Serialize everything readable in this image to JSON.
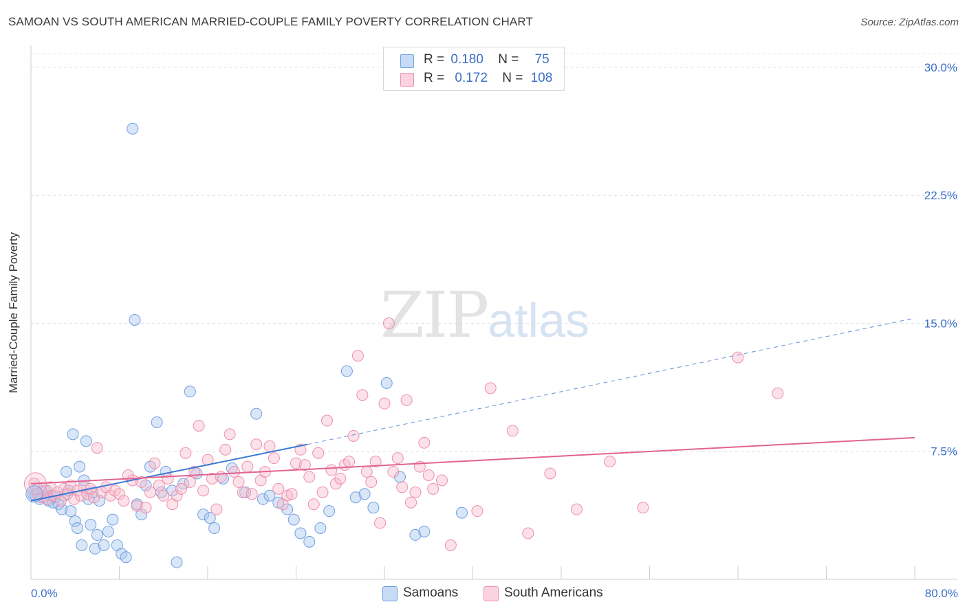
{
  "title": "SAMOAN VS SOUTH AMERICAN MARRIED-COUPLE FAMILY POVERTY CORRELATION CHART",
  "source": "Source: ZipAtlas.com",
  "watermark": {
    "zip": "ZIP",
    "atlas": "atlas"
  },
  "legend": {
    "samoans": {
      "r_label": "R =",
      "r_value": "0.180",
      "n_label": "N =",
      "n_value": "75",
      "color": "#aac8f0"
    },
    "south_americans": {
      "r_label": "R =",
      "r_value": "0.172",
      "n_label": "N =",
      "n_value": "108",
      "color": "#f7bccd"
    }
  },
  "bottom_legend": {
    "samoans": "Samoans",
    "south_americans": "South Americans"
  },
  "chart_data": {
    "type": "scatter",
    "title": "SAMOAN VS SOUTH AMERICAN MARRIED-COUPLE FAMILY POVERTY CORRELATION CHART",
    "xlabel": "",
    "ylabel": "Married-Couple Family Poverty",
    "xlim": [
      0,
      80
    ],
    "ylim": [
      0,
      30.8
    ],
    "x_tick_labels": [
      "0.0%",
      "80.0%"
    ],
    "y_tick_labels": [
      "7.5%",
      "15.0%",
      "22.5%",
      "30.0%"
    ],
    "y_ticks": [
      7.5,
      15.0,
      22.5,
      30.0
    ],
    "grid": true,
    "series": [
      {
        "name": "Samoans",
        "color": "#6fa0e0",
        "trend": {
          "x0": 0,
          "y0": 4.6,
          "x1": 25,
          "y1": 7.9,
          "extend_to_x": 80,
          "extend_y": 15.3,
          "color": "#3a78d4"
        },
        "points": [
          [
            0.2,
            5.0
          ],
          [
            0.4,
            4.9
          ],
          [
            0.6,
            5.3
          ],
          [
            0.8,
            4.7
          ],
          [
            1.0,
            5.1
          ],
          [
            1.2,
            4.8
          ],
          [
            1.4,
            5.2
          ],
          [
            1.6,
            4.6
          ],
          [
            1.8,
            4.9
          ],
          [
            2.0,
            4.5
          ],
          [
            2.2,
            4.8
          ],
          [
            2.5,
            4.4
          ],
          [
            2.8,
            4.1
          ],
          [
            3.0,
            4.9
          ],
          [
            3.2,
            6.3
          ],
          [
            3.4,
            5.2
          ],
          [
            3.6,
            4.0
          ],
          [
            3.8,
            8.5
          ],
          [
            4.0,
            3.4
          ],
          [
            4.2,
            3.0
          ],
          [
            4.4,
            6.6
          ],
          [
            4.6,
            2.0
          ],
          [
            4.8,
            5.8
          ],
          [
            5.0,
            8.1
          ],
          [
            5.2,
            4.7
          ],
          [
            5.4,
            3.2
          ],
          [
            5.6,
            5.1
          ],
          [
            5.8,
            1.8
          ],
          [
            6.0,
            2.6
          ],
          [
            6.2,
            4.6
          ],
          [
            6.6,
            2.0
          ],
          [
            7.0,
            2.8
          ],
          [
            7.4,
            3.5
          ],
          [
            7.8,
            2.0
          ],
          [
            8.2,
            1.5
          ],
          [
            8.6,
            1.3
          ],
          [
            9.2,
            26.4
          ],
          [
            9.4,
            15.2
          ],
          [
            9.6,
            4.4
          ],
          [
            10.0,
            3.8
          ],
          [
            10.4,
            5.5
          ],
          [
            10.8,
            6.6
          ],
          [
            11.4,
            9.2
          ],
          [
            11.8,
            5.1
          ],
          [
            12.2,
            6.3
          ],
          [
            12.8,
            5.2
          ],
          [
            13.2,
            1.0
          ],
          [
            13.8,
            5.6
          ],
          [
            14.4,
            11.0
          ],
          [
            15.0,
            6.2
          ],
          [
            15.6,
            3.8
          ],
          [
            16.2,
            3.6
          ],
          [
            16.6,
            3.0
          ],
          [
            17.4,
            5.9
          ],
          [
            18.2,
            6.5
          ],
          [
            19.4,
            5.1
          ],
          [
            20.4,
            9.7
          ],
          [
            21.0,
            4.7
          ],
          [
            21.6,
            4.9
          ],
          [
            22.4,
            4.5
          ],
          [
            23.2,
            4.1
          ],
          [
            23.8,
            3.5
          ],
          [
            24.4,
            2.7
          ],
          [
            25.2,
            2.2
          ],
          [
            26.2,
            3.0
          ],
          [
            27.0,
            4.0
          ],
          [
            28.6,
            12.2
          ],
          [
            29.4,
            4.8
          ],
          [
            30.2,
            5.0
          ],
          [
            31.0,
            4.2
          ],
          [
            32.2,
            11.5
          ],
          [
            33.4,
            6.0
          ],
          [
            34.8,
            2.6
          ],
          [
            35.6,
            2.8
          ],
          [
            39.0,
            3.9
          ]
        ]
      },
      {
        "name": "South Americans",
        "color": "#ef8fae",
        "trend": {
          "x0": 0,
          "y0": 5.6,
          "x1": 80,
          "y1": 8.3,
          "color": "#e2638f"
        },
        "points": [
          [
            0.3,
            5.6
          ],
          [
            0.6,
            5.0
          ],
          [
            0.9,
            4.8
          ],
          [
            1.2,
            5.2
          ],
          [
            1.5,
            4.7
          ],
          [
            1.8,
            5.4
          ],
          [
            2.1,
            4.9
          ],
          [
            2.4,
            5.1
          ],
          [
            2.7,
            4.6
          ],
          [
            3.0,
            5.3
          ],
          [
            3.3,
            5.0
          ],
          [
            3.6,
            5.5
          ],
          [
            3.9,
            4.7
          ],
          [
            4.2,
            5.2
          ],
          [
            4.5,
            4.9
          ],
          [
            4.8,
            5.4
          ],
          [
            5.1,
            5.0
          ],
          [
            5.4,
            5.3
          ],
          [
            5.7,
            4.8
          ],
          [
            6.0,
            7.7
          ],
          [
            6.4,
            5.1
          ],
          [
            6.8,
            5.4
          ],
          [
            7.2,
            4.9
          ],
          [
            7.6,
            5.2
          ],
          [
            8.0,
            5.0
          ],
          [
            8.4,
            4.6
          ],
          [
            8.8,
            6.1
          ],
          [
            9.2,
            5.8
          ],
          [
            9.6,
            4.3
          ],
          [
            10.0,
            5.7
          ],
          [
            10.4,
            4.2
          ],
          [
            10.8,
            5.1
          ],
          [
            11.2,
            6.8
          ],
          [
            11.6,
            5.5
          ],
          [
            12.0,
            4.9
          ],
          [
            12.4,
            5.9
          ],
          [
            12.8,
            4.4
          ],
          [
            13.2,
            4.9
          ],
          [
            13.6,
            5.3
          ],
          [
            14.0,
            7.4
          ],
          [
            14.4,
            5.7
          ],
          [
            14.8,
            6.3
          ],
          [
            15.2,
            9.0
          ],
          [
            15.6,
            5.2
          ],
          [
            16.0,
            7.0
          ],
          [
            16.4,
            5.9
          ],
          [
            16.8,
            4.1
          ],
          [
            17.2,
            6.0
          ],
          [
            17.6,
            7.6
          ],
          [
            18.0,
            8.5
          ],
          [
            18.4,
            6.3
          ],
          [
            18.8,
            5.7
          ],
          [
            19.2,
            5.1
          ],
          [
            19.6,
            6.6
          ],
          [
            20.0,
            5.0
          ],
          [
            20.4,
            7.9
          ],
          [
            20.8,
            5.8
          ],
          [
            21.2,
            6.3
          ],
          [
            21.6,
            7.8
          ],
          [
            22.0,
            7.1
          ],
          [
            22.4,
            5.3
          ],
          [
            22.8,
            4.4
          ],
          [
            23.2,
            4.9
          ],
          [
            23.6,
            5.0
          ],
          [
            24.0,
            6.8
          ],
          [
            24.4,
            7.6
          ],
          [
            24.8,
            6.7
          ],
          [
            25.2,
            6.0
          ],
          [
            25.6,
            4.4
          ],
          [
            26.0,
            7.4
          ],
          [
            26.4,
            5.1
          ],
          [
            26.8,
            9.3
          ],
          [
            27.2,
            6.4
          ],
          [
            27.6,
            5.6
          ],
          [
            28.0,
            5.9
          ],
          [
            28.4,
            6.7
          ],
          [
            28.8,
            6.9
          ],
          [
            29.2,
            8.4
          ],
          [
            29.6,
            13.1
          ],
          [
            30.0,
            10.8
          ],
          [
            30.4,
            6.3
          ],
          [
            30.8,
            5.7
          ],
          [
            31.2,
            6.9
          ],
          [
            31.6,
            3.3
          ],
          [
            32.0,
            10.3
          ],
          [
            32.4,
            15.0
          ],
          [
            32.8,
            6.3
          ],
          [
            33.2,
            7.1
          ],
          [
            33.6,
            5.4
          ],
          [
            34.0,
            10.5
          ],
          [
            34.4,
            4.5
          ],
          [
            34.8,
            5.1
          ],
          [
            35.2,
            6.6
          ],
          [
            35.6,
            8.0
          ],
          [
            36.0,
            6.1
          ],
          [
            36.4,
            5.3
          ],
          [
            37.2,
            5.8
          ],
          [
            38.0,
            2.0
          ],
          [
            40.4,
            4.0
          ],
          [
            41.6,
            11.2
          ],
          [
            43.6,
            8.7
          ],
          [
            45.0,
            2.7
          ],
          [
            47.0,
            6.2
          ],
          [
            49.4,
            4.1
          ],
          [
            52.4,
            6.9
          ],
          [
            55.4,
            4.2
          ],
          [
            64.0,
            13.0
          ],
          [
            67.6,
            10.9
          ]
        ]
      }
    ]
  }
}
